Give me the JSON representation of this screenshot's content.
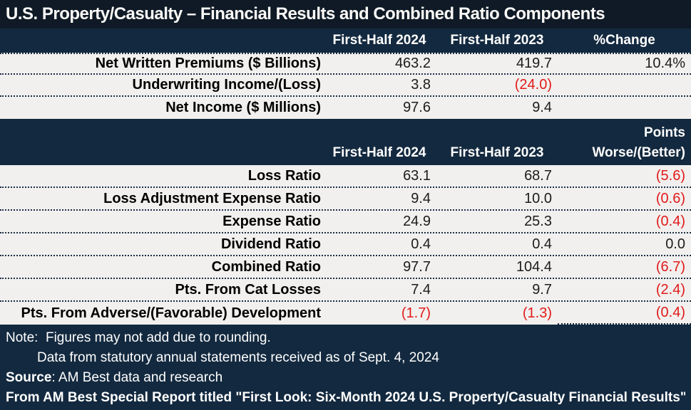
{
  "colors": {
    "title_bar_navy": "#0f1a26",
    "header_band_navy": "#13293f",
    "row_background": "#f1f0ee",
    "dotted_border": "#1b2e45",
    "negative_red": "#e11a1a",
    "header_text": "#ffffff"
  },
  "chart_data": [
    {
      "type": "table",
      "title": "U.S. Property/Casualty – Financial Results and Combined Ratio Components",
      "columns": [
        "",
        "First-Half 2024",
        "First-Half 2023",
        "%Change"
      ],
      "rows": [
        [
          "Net Written Premiums ($ Billions)",
          "463.2",
          "419.7",
          "10.4%"
        ],
        [
          "Underwriting Income/(Loss)",
          "3.8",
          "(24.0)",
          ""
        ],
        [
          "Net Income ($ Millions)",
          "97.6",
          "9.4",
          ""
        ]
      ]
    },
    {
      "type": "table",
      "points_line": "Points",
      "columns": [
        "",
        "First-Half 2024",
        "First-Half 2023",
        "Worse/(Better)"
      ],
      "rows": [
        [
          "Loss Ratio",
          "63.1",
          "68.7",
          "(5.6)"
        ],
        [
          "Loss Adjustment Expense Ratio",
          "9.4",
          "10.0",
          "(0.6)"
        ],
        [
          "Expense Ratio",
          "24.9",
          "25.3",
          "(0.4)"
        ],
        [
          "Dividend Ratio",
          "0.4",
          "0.4",
          "0.0"
        ],
        [
          "Combined Ratio",
          "97.7",
          "104.4",
          "(6.7)"
        ],
        [
          "Pts. From Cat Losses",
          "7.4",
          "9.7",
          "(2.4)"
        ],
        [
          "Pts. From Adverse/(Favorable) Development",
          "(1.7)",
          "(1.3)",
          "(0.4)"
        ]
      ]
    }
  ],
  "footer": {
    "note_line1": "Note:  Figures may not add due to rounding.",
    "note_line2": "Data from statutory annual statements received as of Sept. 4, 2024",
    "source_label": "Source",
    "source_rest": ": AM Best data and research",
    "report_line": "From AM Best Special Report titled \"First Look: Six-Month 2024 U.S. Property/Casualty Financial Results\""
  }
}
